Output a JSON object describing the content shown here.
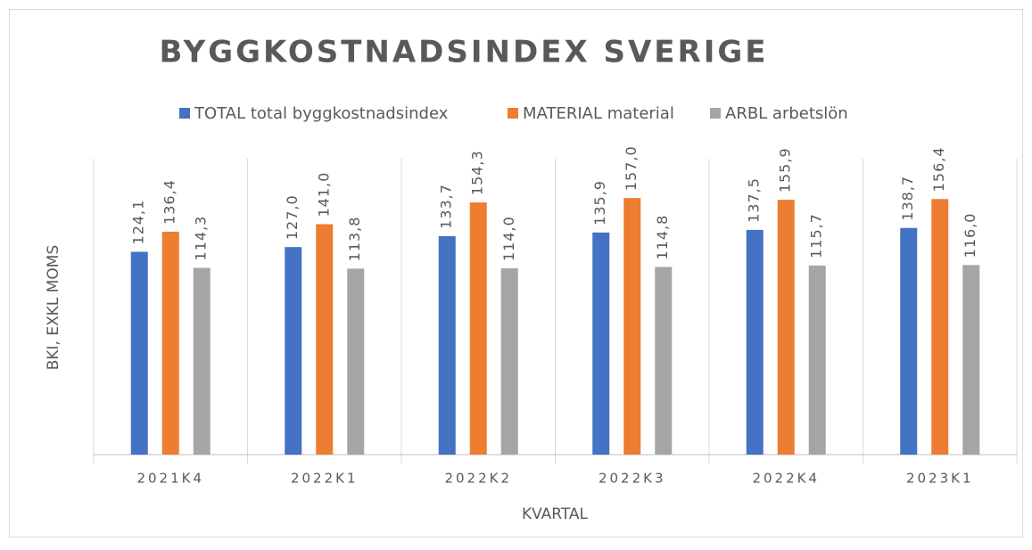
{
  "chart_data": {
    "type": "bar",
    "title": "BYGGKOSTNADSINDEX SVERIGE",
    "x_label": "KVARTAL",
    "y_label": "BKI, EXKL MOMS",
    "categories": [
      "2021K4",
      "2022K1",
      "2022K2",
      "2022K3",
      "2022K4",
      "2023K1"
    ],
    "series": [
      {
        "name": "TOTAL total byggkostnadsindex",
        "color": "#4472c4",
        "values": [
          124.1,
          127.0,
          133.7,
          135.9,
          137.5,
          138.7
        ],
        "value_labels": [
          "124,1",
          "127,0",
          "133,7",
          "135,9",
          "137,5",
          "138,7"
        ]
      },
      {
        "name": "MATERIAL material",
        "color": "#ed7d31",
        "values": [
          136.4,
          141.0,
          154.3,
          157.0,
          155.9,
          156.4
        ],
        "value_labels": [
          "136,4",
          "141,0",
          "154,3",
          "157,0",
          "155,9",
          "156,4"
        ]
      },
      {
        "name": "ARBL arbetslön",
        "color": "#a5a5a5",
        "values": [
          114.3,
          113.8,
          114.0,
          114.8,
          115.7,
          116.0
        ],
        "value_labels": [
          "114,3",
          "113,8",
          "114,0",
          "114,8",
          "115,7",
          "116,0"
        ]
      }
    ],
    "ylim": [
      0,
      180
    ],
    "legend": "top"
  }
}
